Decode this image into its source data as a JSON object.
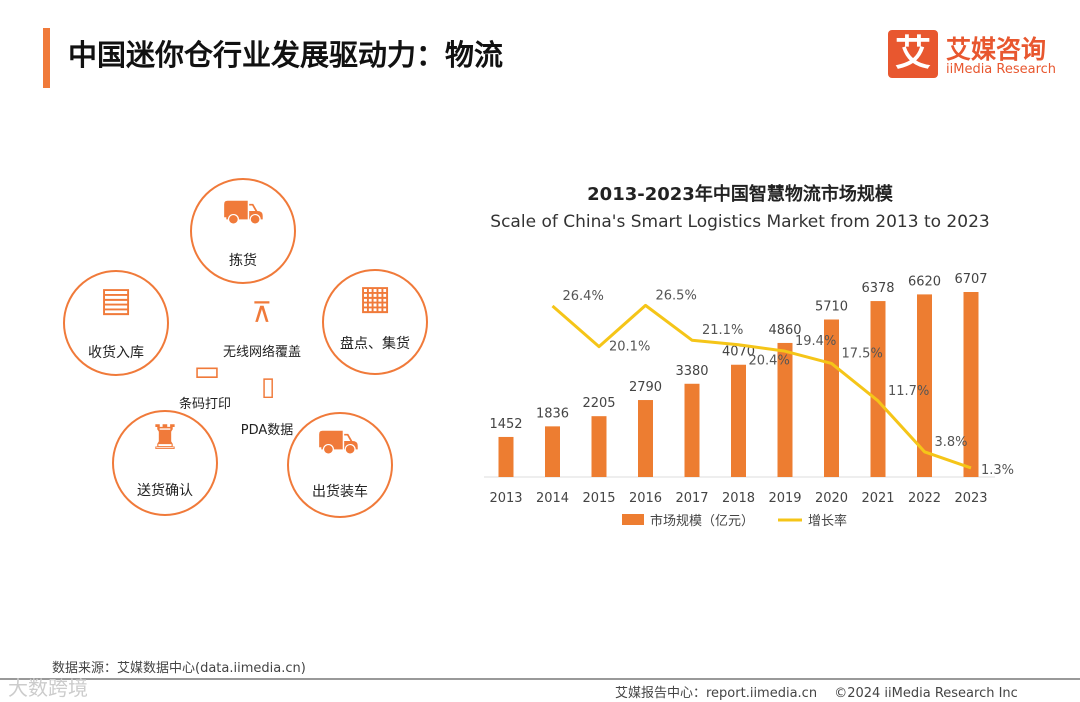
{
  "title": "中国迷你仓行业发展驱动力：物流",
  "logo": {
    "mark": "艾",
    "cn": "艾媒咨询",
    "en": "iiMedia Research"
  },
  "diagram": {
    "nodes": [
      "拣货",
      "收货入库",
      "盘点、集货",
      "送货确认",
      "出货装车"
    ],
    "center": [
      "无线网络覆盖",
      "条码打印",
      "PDA数据"
    ]
  },
  "chart_data": {
    "type": "bar",
    "title": "2013-2023年中国智慧物流市场规模",
    "subtitle": "Scale of China's Smart Logistics Market from 2013 to 2023",
    "categories": [
      "2013",
      "2014",
      "2015",
      "2016",
      "2017",
      "2018",
      "2019",
      "2020",
      "2021",
      "2022",
      "2023"
    ],
    "series": [
      {
        "name": "市场规模（亿元）",
        "type": "bar",
        "color": "#ed7d31",
        "values": [
          1452,
          1836,
          2205,
          2790,
          3380,
          4070,
          4860,
          5710,
          6378,
          6620,
          6707
        ]
      },
      {
        "name": "增长率",
        "type": "line",
        "color": "#f5c518",
        "values": [
          null,
          26.4,
          20.1,
          26.5,
          21.1,
          20.4,
          19.4,
          17.5,
          11.7,
          3.8,
          1.3
        ],
        "labels": [
          "",
          "26.4%",
          "20.1%",
          "26.5%",
          "21.1%",
          "20.4%",
          "19.4%",
          "17.5%",
          "11.7%",
          "3.8%",
          "1.3%"
        ]
      }
    ],
    "legend": "bottom"
  },
  "source": "数据来源：艾媒数据中心(data.iimedia.cn)",
  "footer": "艾媒报告中心：report.iimedia.cn　 ©2024  iiMedia Research  Inc",
  "watermark": "大数跨境"
}
